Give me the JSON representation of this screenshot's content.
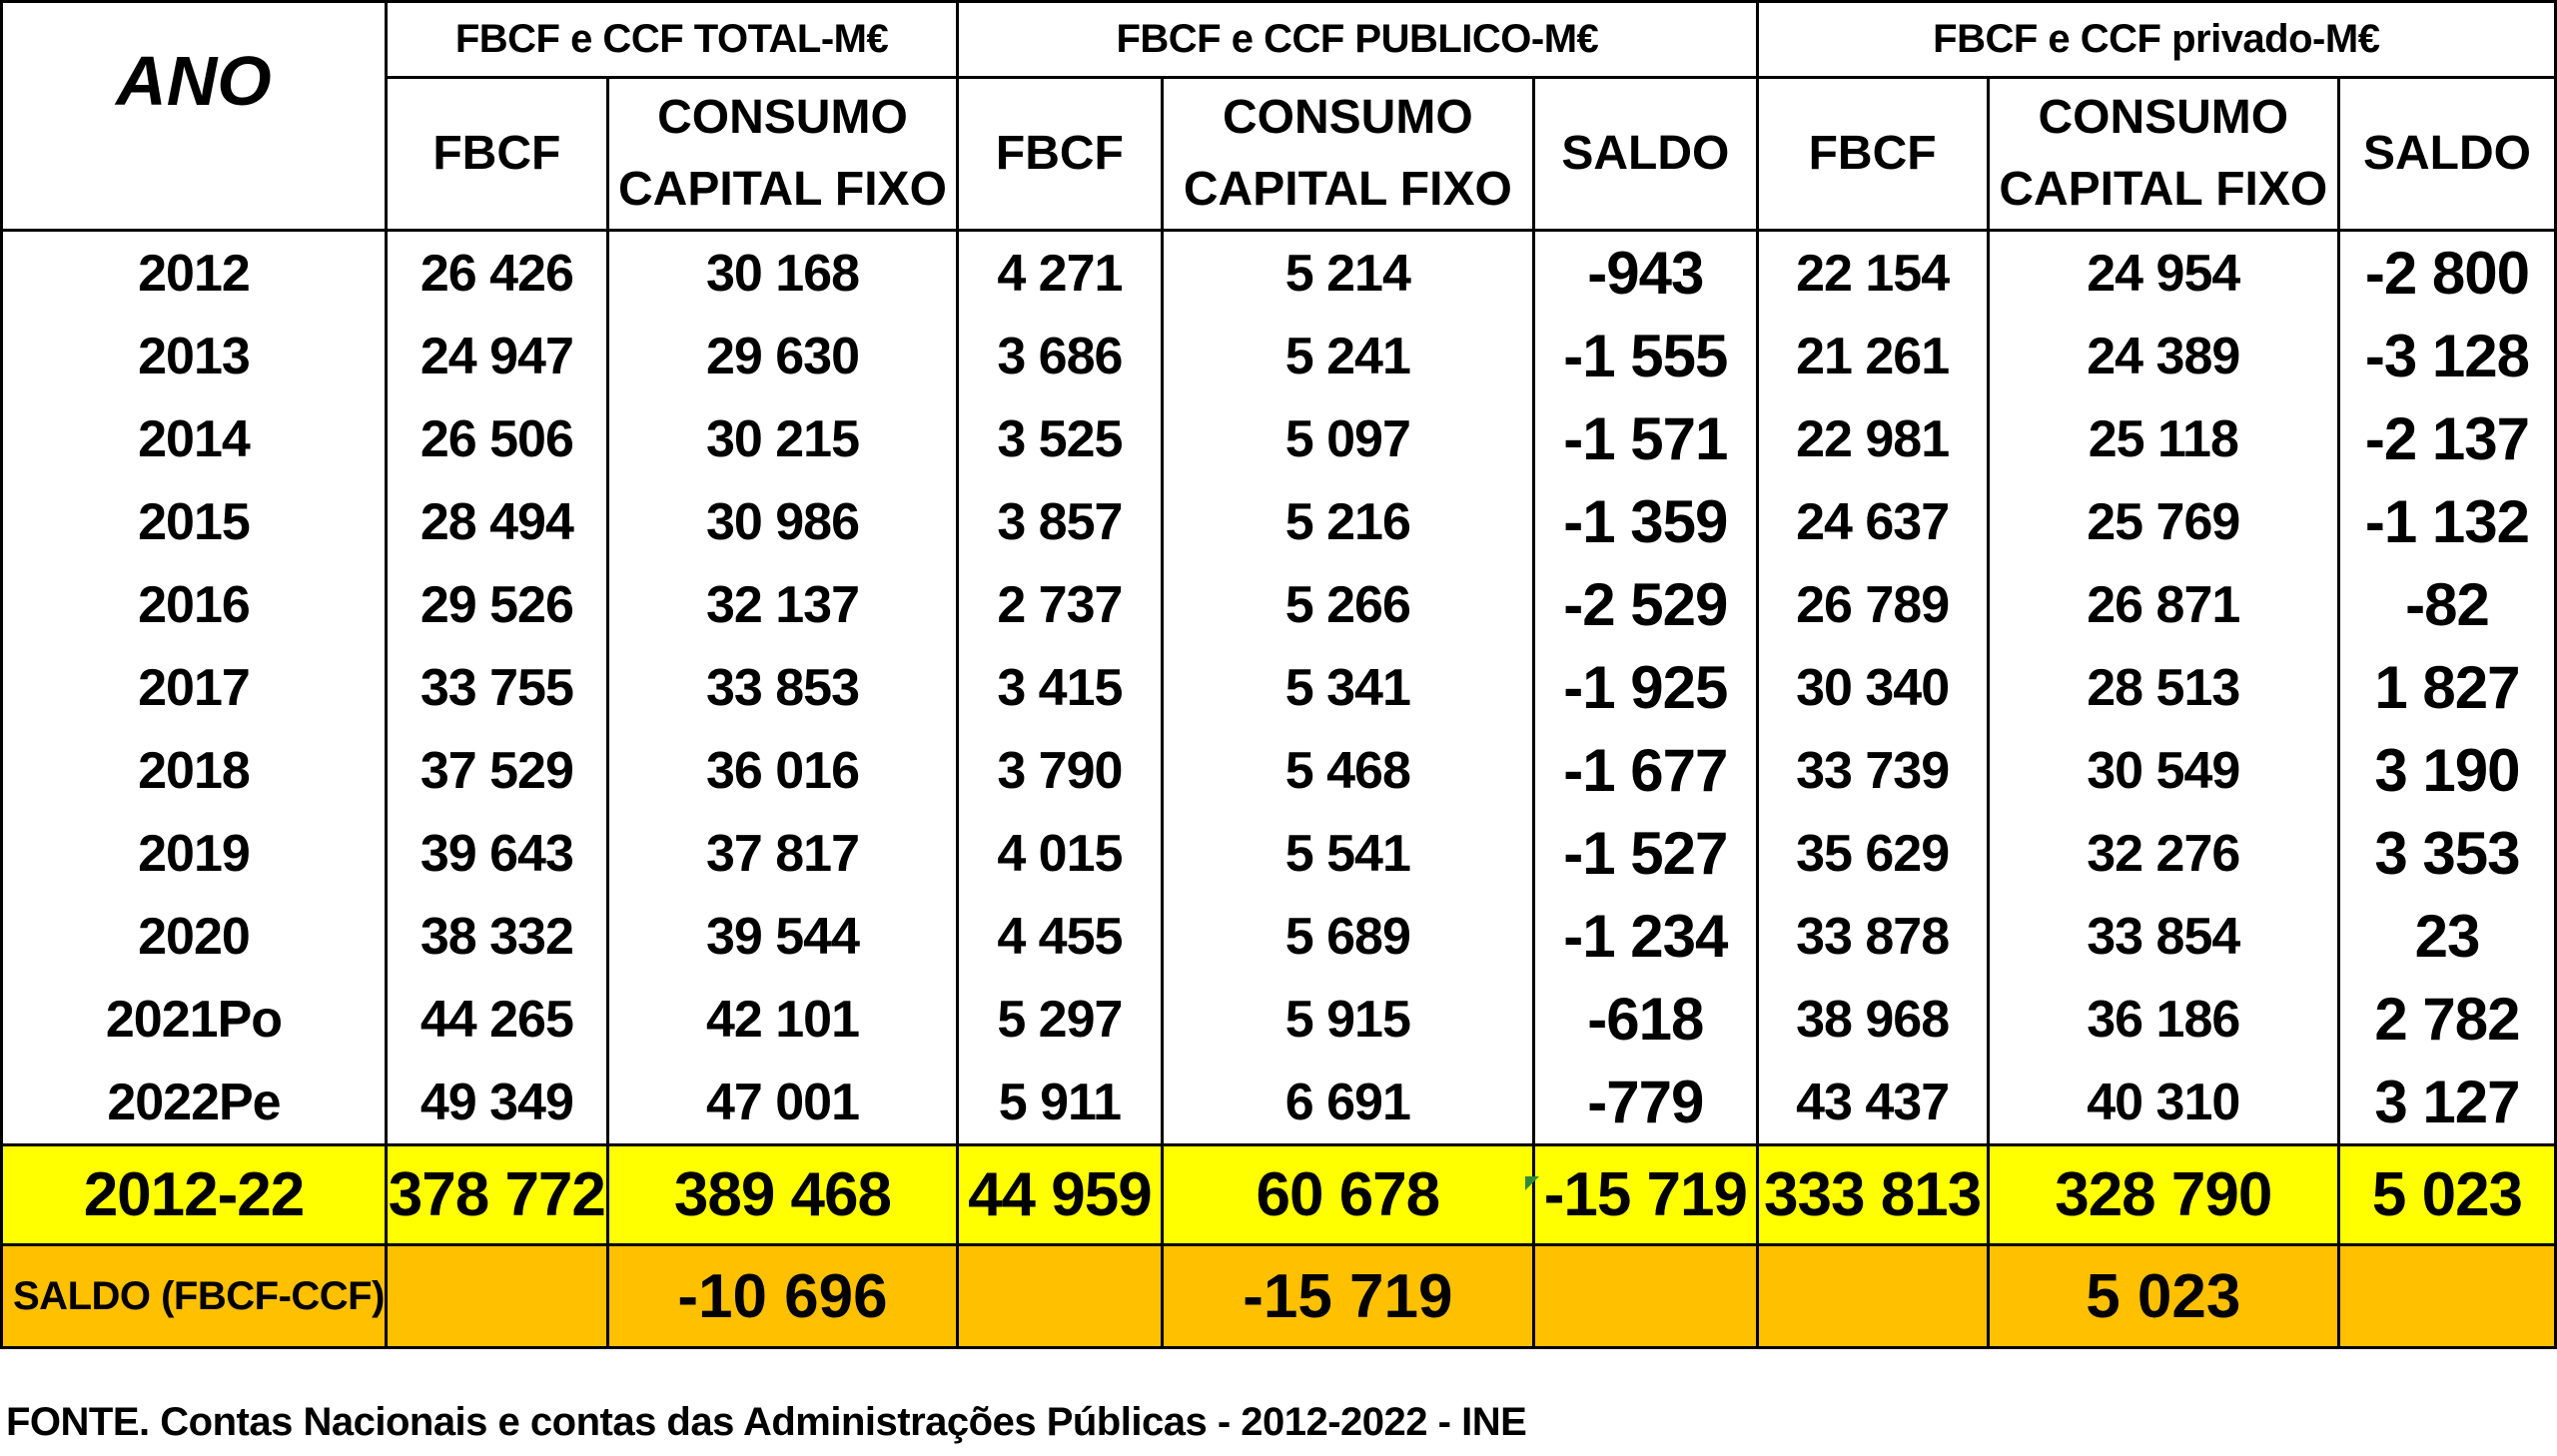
{
  "headers": {
    "ano": "ANO",
    "group_total": "FBCF e CCF TOTAL-M€",
    "group_publico": "FBCF e CCF PUBLICO-M€",
    "group_privado": "FBCF  e CCF privado-M€",
    "fbcf": "FBCF",
    "consumo_line1": "CONSUMO",
    "consumo_line2": "CAPITAL FIXO",
    "saldo": "SALDO"
  },
  "rows": [
    {
      "ano": "2012",
      "t_fbcf": "26 426",
      "t_ccf": "30 168",
      "p_fbcf": "4 271",
      "p_ccf": "5 214",
      "p_saldo": "-943",
      "v_fbcf": "22 154",
      "v_ccf": "24 954",
      "v_saldo": "-2 800"
    },
    {
      "ano": "2013",
      "t_fbcf": "24 947",
      "t_ccf": "29 630",
      "p_fbcf": "3 686",
      "p_ccf": "5 241",
      "p_saldo": "-1 555",
      "v_fbcf": "21 261",
      "v_ccf": "24 389",
      "v_saldo": "-3 128"
    },
    {
      "ano": "2014",
      "t_fbcf": "26 506",
      "t_ccf": "30 215",
      "p_fbcf": "3 525",
      "p_ccf": "5 097",
      "p_saldo": "-1 571",
      "v_fbcf": "22 981",
      "v_ccf": "25 118",
      "v_saldo": "-2 137"
    },
    {
      "ano": "2015",
      "t_fbcf": "28 494",
      "t_ccf": "30 986",
      "p_fbcf": "3 857",
      "p_ccf": "5 216",
      "p_saldo": "-1 359",
      "v_fbcf": "24 637",
      "v_ccf": "25 769",
      "v_saldo": "-1 132"
    },
    {
      "ano": "2016",
      "t_fbcf": "29 526",
      "t_ccf": "32 137",
      "p_fbcf": "2 737",
      "p_ccf": "5 266",
      "p_saldo": "-2 529",
      "v_fbcf": "26 789",
      "v_ccf": "26 871",
      "v_saldo": "-82"
    },
    {
      "ano": "2017",
      "t_fbcf": "33 755",
      "t_ccf": "33 853",
      "p_fbcf": "3 415",
      "p_ccf": "5 341",
      "p_saldo": "-1 925",
      "v_fbcf": "30 340",
      "v_ccf": "28 513",
      "v_saldo": "1 827"
    },
    {
      "ano": "2018",
      "t_fbcf": "37 529",
      "t_ccf": "36 016",
      "p_fbcf": "3 790",
      "p_ccf": "5 468",
      "p_saldo": "-1 677",
      "v_fbcf": "33 739",
      "v_ccf": "30 549",
      "v_saldo": "3 190"
    },
    {
      "ano": "2019",
      "t_fbcf": "39 643",
      "t_ccf": "37 817",
      "p_fbcf": "4 015",
      "p_ccf": "5 541",
      "p_saldo": "-1 527",
      "v_fbcf": "35 629",
      "v_ccf": "32 276",
      "v_saldo": "3 353"
    },
    {
      "ano": "2020",
      "t_fbcf": "38 332",
      "t_ccf": "39 544",
      "p_fbcf": "4 455",
      "p_ccf": "5 689",
      "p_saldo": "-1 234",
      "v_fbcf": "33 878",
      "v_ccf": "33 854",
      "v_saldo": "23"
    },
    {
      "ano": "2021Po",
      "t_fbcf": "44 265",
      "t_ccf": "42 101",
      "p_fbcf": "5 297",
      "p_ccf": "5 915",
      "p_saldo": "-618",
      "v_fbcf": "38 968",
      "v_ccf": "36 186",
      "v_saldo": "2 782"
    },
    {
      "ano": "2022Pe",
      "t_fbcf": "49 349",
      "t_ccf": "47 001",
      "p_fbcf": "5 911",
      "p_ccf": "6 691",
      "p_saldo": "-779",
      "v_fbcf": "43 437",
      "v_ccf": "40 310",
      "v_saldo": "3 127"
    }
  ],
  "total": {
    "ano": "2012-22",
    "t_fbcf": "378 772",
    "t_ccf": "389 468",
    "p_fbcf": "44 959",
    "p_ccf": "60 678",
    "p_saldo": "-15 719",
    "v_fbcf": "333 813",
    "v_ccf": "328 790",
    "v_saldo": "5 023"
  },
  "saldo_row": {
    "label": "SALDO (FBCF-CCF)",
    "total": "-10 696",
    "publico": "-15 719",
    "privado": "5 023"
  },
  "source": "FONTE. Contas Nacionais e contas das Administrações Públicas - 2012-2022 - INE",
  "colors": {
    "total_row": "#ffff00",
    "saldo_row": "#ffc000"
  }
}
